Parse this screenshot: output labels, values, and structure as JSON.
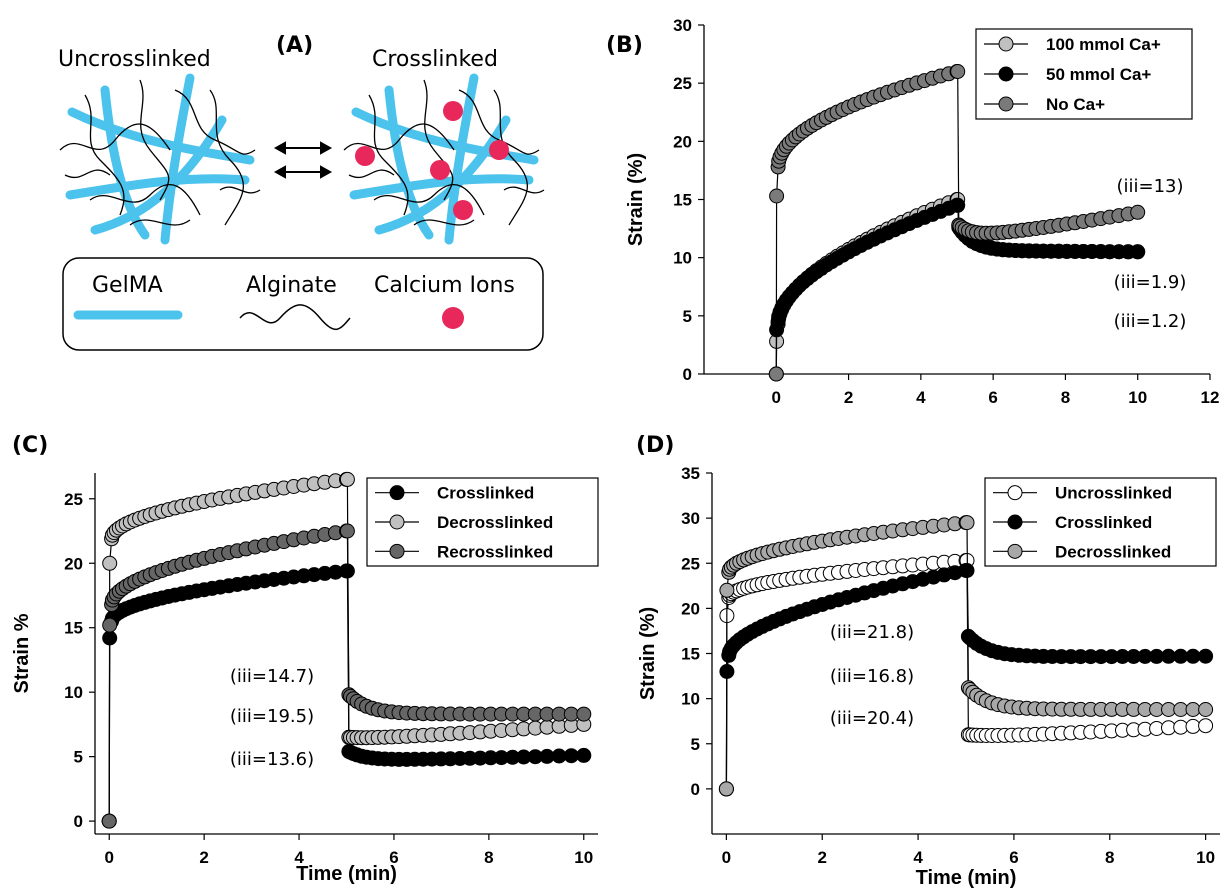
{
  "schematic": {
    "label": "(A)",
    "uncrosslinked": "Uncrosslinked",
    "crosslinked": "Crosslinked",
    "legend": {
      "gelma": "GelMA",
      "alginate": "Alginate",
      "calcium": "Calcium Ions"
    },
    "colors": {
      "gelma": "#4cc3ec",
      "calcium": "#e8285a",
      "alginate": "#000000"
    }
  },
  "chart_data": [
    {
      "panel": "(B)",
      "type": "line",
      "ylabel": "Strain (%)",
      "xlabel": "",
      "xlim": [
        -2,
        12
      ],
      "ylim": [
        0,
        30
      ],
      "xticks": [
        0,
        2,
        4,
        6,
        8,
        10,
        12
      ],
      "yticks": [
        0,
        5,
        10,
        15,
        20,
        25,
        30
      ],
      "legend_position": "top-right",
      "series": [
        {
          "name": "100 mmol Ca+",
          "color": "#c0c0c0",
          "load": {
            "start": 0,
            "jump": 2.8,
            "plateau": 4.3,
            "end": 15.0,
            "exp": 0.55
          },
          "recovery": {
            "start": 12.8,
            "min": 10.6,
            "end": 10.5,
            "kind": "decay"
          }
        },
        {
          "name": "50 mmol Ca+",
          "color": "#000000",
          "load": {
            "start": 0,
            "jump": 3.8,
            "plateau": 4.5,
            "end": 14.5,
            "exp": 0.55
          },
          "recovery": {
            "start": 12.6,
            "min": 10.6,
            "end": 10.5,
            "kind": "decay"
          }
        },
        {
          "name": "No Ca+",
          "color": "#7a7a7a",
          "load": {
            "start": 0,
            "jump": 15.3,
            "plateau": 17.8,
            "end": 26.0,
            "exp": 0.5
          },
          "recovery": {
            "start": 12.8,
            "min": 11.8,
            "end": 13.9,
            "kind": "rebound"
          }
        }
      ],
      "annotations": [
        "(iii=13)",
        "(iii=1.9)",
        "(iii=1.2)"
      ]
    },
    {
      "panel": "(C)",
      "type": "line",
      "ylabel": "Strain %",
      "xlabel": "Time (min)",
      "xlim": [
        -0.3,
        10.3
      ],
      "ylim": [
        -1,
        27
      ],
      "xticks": [
        0,
        2,
        4,
        6,
        8,
        10
      ],
      "yticks": [
        0,
        5,
        10,
        15,
        20,
        25
      ],
      "legend_position": "top-right",
      "series": [
        {
          "name": "Crosslinked",
          "color": "#000000",
          "load": {
            "start": 0,
            "jump": 14.2,
            "plateau": 15.5,
            "end": 19.4,
            "exp": 0.5
          },
          "recovery": {
            "start": 5.4,
            "min": 4.7,
            "end": 5.1,
            "kind": "rebound"
          }
        },
        {
          "name": "Decrosslinked",
          "color": "#c0c0c0",
          "load": {
            "start": 0,
            "jump": 20.0,
            "plateau": 21.9,
            "end": 26.5,
            "exp": 0.5
          },
          "recovery": {
            "start": 6.5,
            "min": 6.4,
            "end": 7.5,
            "kind": "rebound"
          }
        },
        {
          "name": "Recrosslinked",
          "color": "#666666",
          "load": {
            "start": 0,
            "jump": 15.2,
            "plateau": 16.8,
            "end": 22.5,
            "exp": 0.5
          },
          "recovery": {
            "start": 9.8,
            "min": 8.3,
            "end": 8.3,
            "kind": "decay"
          }
        }
      ],
      "annotations": [
        "(iii=14.7)",
        "(iii=19.5)",
        "(iii=13.6)"
      ]
    },
    {
      "panel": "(D)",
      "type": "line",
      "ylabel": "Strain (%)",
      "xlabel": "Time (min)",
      "xlim": [
        -0.3,
        10.3
      ],
      "ylim": [
        -5,
        35
      ],
      "xticks": [
        0,
        2,
        4,
        6,
        8,
        10
      ],
      "yticks": [
        0,
        5,
        10,
        15,
        20,
        25,
        30,
        35
      ],
      "legend_position": "top-right",
      "series": [
        {
          "name": "Uncrosslinked",
          "color": "#ffffff",
          "load": {
            "start": 0,
            "jump": 19.2,
            "plateau": 21.2,
            "end": 25.3,
            "exp": 0.5
          },
          "recovery": {
            "start": 6.0,
            "min": 5.8,
            "end": 7.0,
            "kind": "rebound"
          }
        },
        {
          "name": "Crosslinked",
          "color": "#000000",
          "load": {
            "start": 0,
            "jump": 13.0,
            "plateau": 14.8,
            "end": 24.2,
            "exp": 0.55
          },
          "recovery": {
            "start": 16.9,
            "min": 14.6,
            "end": 14.7,
            "kind": "decay"
          }
        },
        {
          "name": "Decrosslinked",
          "color": "#a8a8a8",
          "load": {
            "start": 0,
            "jump": 22.0,
            "plateau": 24.0,
            "end": 29.5,
            "exp": 0.5
          },
          "recovery": {
            "start": 11.2,
            "min": 8.8,
            "end": 8.8,
            "kind": "decay"
          }
        }
      ],
      "annotations": [
        "(iii=21.8)",
        "(iii=16.8)",
        "(iii=20.4)"
      ]
    }
  ]
}
